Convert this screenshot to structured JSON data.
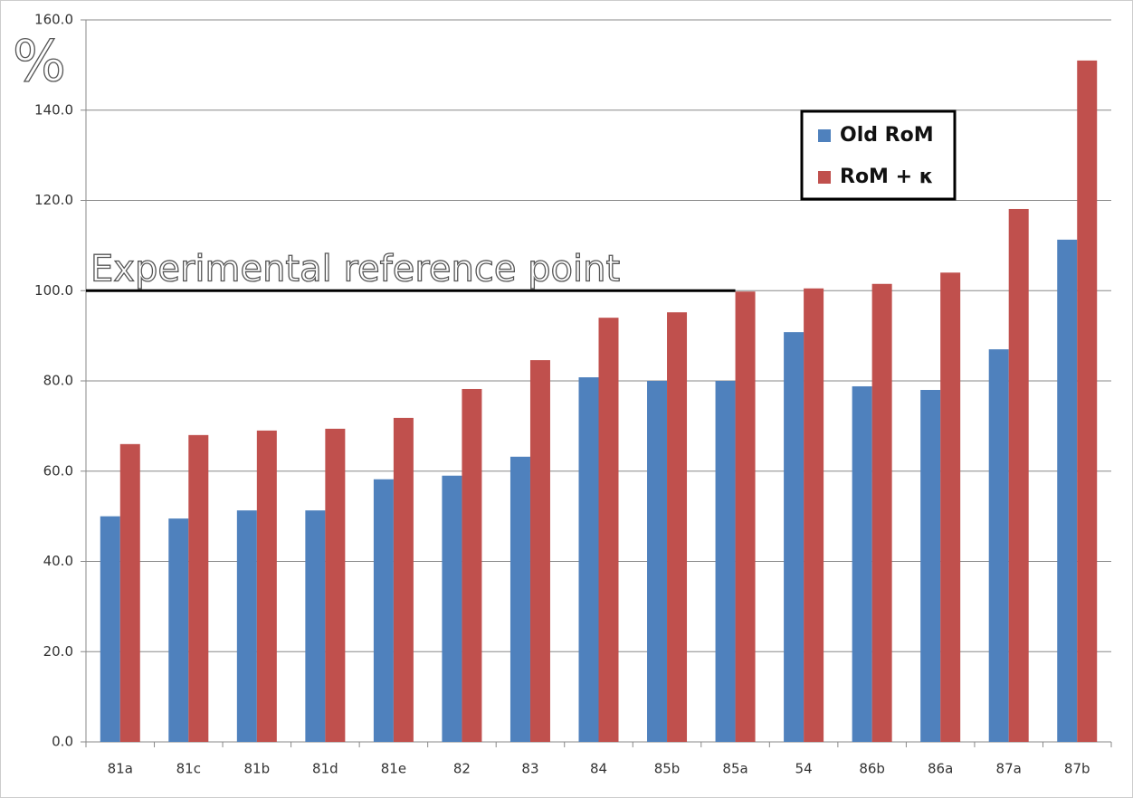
{
  "chart_data": {
    "type": "bar",
    "categories": [
      "81a",
      "81c",
      "81b",
      "81d",
      "81e",
      "82",
      "83",
      "84",
      "85b",
      "85a",
      "54",
      "86b",
      "86a",
      "87a",
      "87b"
    ],
    "series": [
      {
        "name": "Old RoM",
        "color": "#4f81bd",
        "values": [
          50,
          49.5,
          51.3,
          51.3,
          58.2,
          59,
          63.2,
          80.8,
          80,
          80,
          90.8,
          78.8,
          78,
          87,
          111.3
        ]
      },
      {
        "name": "RoM + κ",
        "color": "#c0504d",
        "values": [
          66,
          68,
          69,
          69.4,
          71.8,
          78.2,
          84.6,
          94,
          95.2,
          99.8,
          100.5,
          101.5,
          104,
          118.1,
          151
        ]
      }
    ],
    "ylim": [
      0,
      160
    ],
    "yticks": [
      {
        "value": 0,
        "label": "0.0"
      },
      {
        "value": 20,
        "label": "20.0"
      },
      {
        "value": 40,
        "label": "40.0"
      },
      {
        "value": 60,
        "label": "60.0"
      },
      {
        "value": 80,
        "label": "80.0"
      },
      {
        "value": 100,
        "label": "100.0"
      },
      {
        "value": 120,
        "label": "120.0"
      },
      {
        "value": 140,
        "label": "140.0"
      },
      {
        "value": 160,
        "label": "160.0"
      }
    ],
    "grid": true,
    "y_unit_label": "%",
    "reference_line": {
      "label": "Experimental reference point",
      "value": 100
    },
    "legend": "upper right"
  }
}
